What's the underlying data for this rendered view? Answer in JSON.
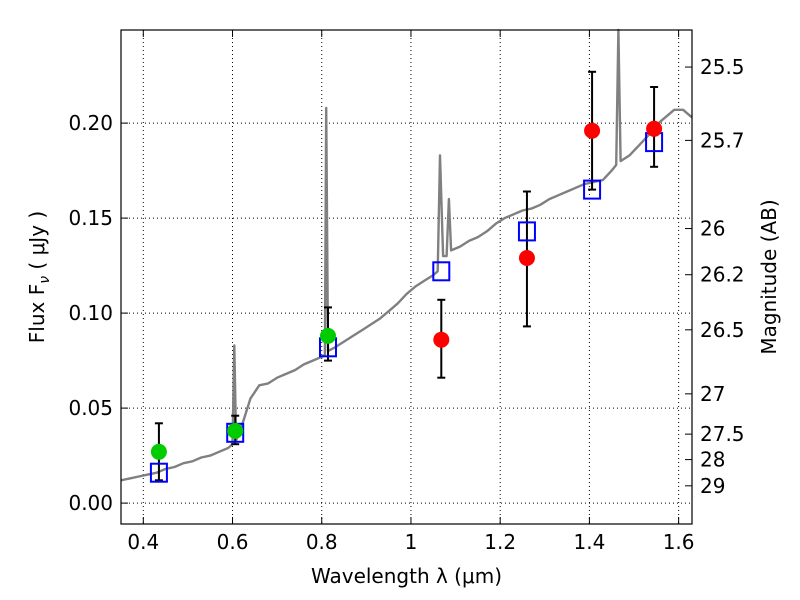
{
  "chart_data": {
    "type": "scatter",
    "xlabel": "Wavelength  λ (μm)",
    "ylabel": "Flux  F",
    "ylabel_sub": "ν",
    "ylabel_unit": "  ( μJy )",
    "y2label": "Magnitude (AB)",
    "xlim": [
      0.35,
      1.63
    ],
    "ylim": [
      -0.011,
      0.249
    ],
    "grid": true,
    "x_ticks": [
      0.4,
      0.6,
      0.8,
      1.0,
      1.2,
      1.4,
      1.6
    ],
    "x_tick_labels": [
      "0.4",
      "0.6",
      "0.8",
      "1",
      "1.2",
      "1.4",
      "1.6"
    ],
    "y_ticks": [
      0.0,
      0.05,
      0.1,
      0.15,
      0.2
    ],
    "y_tick_labels": [
      "0.00",
      "0.05",
      "0.10",
      "0.15",
      "0.20"
    ],
    "mag_ticks": [
      {
        "label": "25.5",
        "flux": 0.2295
      },
      {
        "label": "25.7",
        "flux": 0.1909
      },
      {
        "label": "26",
        "flux": 0.1445
      },
      {
        "label": "26.2",
        "flux": 0.1202
      },
      {
        "label": "26.5",
        "flux": 0.0912
      },
      {
        "label": "27",
        "flux": 0.0575
      },
      {
        "label": "27.5",
        "flux": 0.0363
      },
      {
        "label": "28",
        "flux": 0.0229
      },
      {
        "label": "29",
        "flux": 0.0091
      }
    ],
    "colors": {
      "model": "#808080",
      "green": "#00cc00",
      "red": "#ff0000",
      "square": "#0000ff",
      "errorbar": "#000000",
      "grid": "#000000"
    },
    "series": [
      {
        "marker": "line",
        "color": "#808080",
        "points": [
          [
            0.35,
            0.012
          ],
          [
            0.37,
            0.013
          ],
          [
            0.39,
            0.014
          ],
          [
            0.41,
            0.015
          ],
          [
            0.43,
            0.016
          ],
          [
            0.45,
            0.018
          ],
          [
            0.47,
            0.019
          ],
          [
            0.49,
            0.021
          ],
          [
            0.51,
            0.022
          ],
          [
            0.53,
            0.024
          ],
          [
            0.55,
            0.025
          ],
          [
            0.57,
            0.027
          ],
          [
            0.59,
            0.029
          ],
          [
            0.6,
            0.031
          ],
          [
            0.604,
            0.083
          ],
          [
            0.608,
            0.033
          ],
          [
            0.62,
            0.04
          ],
          [
            0.64,
            0.055
          ],
          [
            0.66,
            0.062
          ],
          [
            0.68,
            0.063
          ],
          [
            0.7,
            0.066
          ],
          [
            0.72,
            0.068
          ],
          [
            0.74,
            0.07
          ],
          [
            0.76,
            0.073
          ],
          [
            0.78,
            0.075
          ],
          [
            0.8,
            0.077
          ],
          [
            0.807,
            0.078
          ],
          [
            0.81,
            0.208
          ],
          [
            0.814,
            0.08
          ],
          [
            0.83,
            0.082
          ],
          [
            0.85,
            0.085
          ],
          [
            0.87,
            0.088
          ],
          [
            0.89,
            0.091
          ],
          [
            0.91,
            0.094
          ],
          [
            0.93,
            0.097
          ],
          [
            0.95,
            0.101
          ],
          [
            0.97,
            0.105
          ],
          [
            0.99,
            0.11
          ],
          [
            1.01,
            0.114
          ],
          [
            1.03,
            0.117
          ],
          [
            1.05,
            0.12
          ],
          [
            1.06,
            0.122
          ],
          [
            1.065,
            0.183
          ],
          [
            1.072,
            0.13
          ],
          [
            1.08,
            0.13
          ],
          [
            1.085,
            0.16
          ],
          [
            1.09,
            0.133
          ],
          [
            1.11,
            0.135
          ],
          [
            1.13,
            0.138
          ],
          [
            1.15,
            0.14
          ],
          [
            1.17,
            0.143
          ],
          [
            1.19,
            0.147
          ],
          [
            1.21,
            0.15
          ],
          [
            1.23,
            0.152
          ],
          [
            1.25,
            0.154
          ],
          [
            1.27,
            0.155
          ],
          [
            1.29,
            0.157
          ],
          [
            1.31,
            0.16
          ],
          [
            1.33,
            0.162
          ],
          [
            1.35,
            0.164
          ],
          [
            1.37,
            0.166
          ],
          [
            1.39,
            0.168
          ],
          [
            1.41,
            0.169
          ],
          [
            1.43,
            0.17
          ],
          [
            1.45,
            0.175
          ],
          [
            1.46,
            0.178
          ],
          [
            1.465,
            0.249
          ],
          [
            1.47,
            0.18
          ],
          [
            1.49,
            0.183
          ],
          [
            1.51,
            0.188
          ],
          [
            1.53,
            0.193
          ],
          [
            1.55,
            0.199
          ],
          [
            1.57,
            0.203
          ],
          [
            1.59,
            0.207
          ],
          [
            1.61,
            0.207
          ],
          [
            1.63,
            0.203
          ]
        ]
      },
      {
        "marker": "circle",
        "color": "#00cc00",
        "points": [
          {
            "x": 0.435,
            "y": 0.027,
            "ylo": 0.012,
            "yhi": 0.042
          },
          {
            "x": 0.606,
            "y": 0.038,
            "ylo": 0.031,
            "yhi": 0.046
          },
          {
            "x": 0.814,
            "y": 0.088,
            "ylo": 0.075,
            "yhi": 0.103
          }
        ]
      },
      {
        "marker": "circle",
        "color": "#ff0000",
        "points": [
          {
            "x": 1.068,
            "y": 0.086,
            "ylo": 0.066,
            "yhi": 0.107
          },
          {
            "x": 1.26,
            "y": 0.129,
            "ylo": 0.093,
            "yhi": 0.164
          },
          {
            "x": 1.406,
            "y": 0.196,
            "ylo": 0.165,
            "yhi": 0.227
          },
          {
            "x": 1.545,
            "y": 0.197,
            "ylo": 0.177,
            "yhi": 0.219
          }
        ]
      },
      {
        "marker": "square",
        "color": "#0000ff",
        "points": [
          {
            "x": 0.435,
            "y": 0.016
          },
          {
            "x": 0.606,
            "y": 0.037
          },
          {
            "x": 0.814,
            "y": 0.082
          },
          {
            "x": 1.068,
            "y": 0.122
          },
          {
            "x": 1.26,
            "y": 0.143
          },
          {
            "x": 1.406,
            "y": 0.165
          },
          {
            "x": 1.545,
            "y": 0.19
          }
        ]
      }
    ]
  }
}
